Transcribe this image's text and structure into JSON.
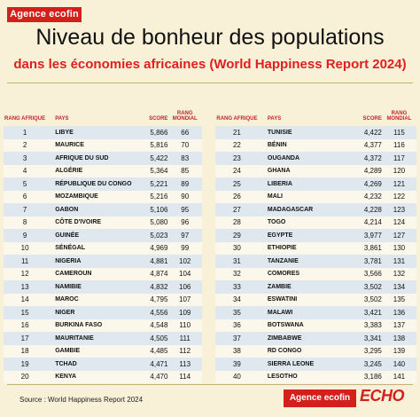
{
  "header": {
    "brand_logo": "Agence ecofin",
    "title": "Niveau de bonheur des populations",
    "subtitle": "dans les économies africaines (World Happiness Report 2024)"
  },
  "columns": {
    "rank_africa": "RANG AFRIQUE",
    "country": "PAYS",
    "score": "SCORE",
    "rank_world": "RANG MONDIAL"
  },
  "left_rows": [
    {
      "rank": "1",
      "country": "LIBYE",
      "score": "5,866",
      "world": "66"
    },
    {
      "rank": "2",
      "country": "MAURICE",
      "score": "5,816",
      "world": "70"
    },
    {
      "rank": "3",
      "country": "AFRIQUE DU SUD",
      "score": "5,422",
      "world": "83"
    },
    {
      "rank": "4",
      "country": "ALGÉRIE",
      "score": "5,364",
      "world": "85"
    },
    {
      "rank": "5",
      "country": "RÉPUBLIQUE DU CONGO",
      "score": "5,221",
      "world": "89"
    },
    {
      "rank": "6",
      "country": "MOZAMBIQUE",
      "score": "5,216",
      "world": "90"
    },
    {
      "rank": "7",
      "country": "GABON",
      "score": "5,106",
      "world": "95"
    },
    {
      "rank": "8",
      "country": "CÔTE D'IVOIRE",
      "score": "5,080",
      "world": "96"
    },
    {
      "rank": "9",
      "country": "GUINÉE",
      "score": "5,023",
      "world": "97"
    },
    {
      "rank": "10",
      "country": "SÉNÉGAL",
      "score": "4,969",
      "world": "99"
    },
    {
      "rank": "11",
      "country": "NIGERIA",
      "score": "4,881",
      "world": "102"
    },
    {
      "rank": "12",
      "country": "CAMEROUN",
      "score": "4,874",
      "world": "104"
    },
    {
      "rank": "13",
      "country": "NAMIBIE",
      "score": "4,832",
      "world": "106"
    },
    {
      "rank": "14",
      "country": "MAROC",
      "score": "4,795",
      "world": "107"
    },
    {
      "rank": "15",
      "country": "NIGER",
      "score": "4,556",
      "world": "109"
    },
    {
      "rank": "16",
      "country": "BURKINA FASO",
      "score": "4,548",
      "world": "110"
    },
    {
      "rank": "17",
      "country": "MAURITANIE",
      "score": "4,505",
      "world": "111"
    },
    {
      "rank": "18",
      "country": "GAMBIE",
      "score": "4,485",
      "world": "112"
    },
    {
      "rank": "19",
      "country": "TCHAD",
      "score": "4,471",
      "world": "113"
    },
    {
      "rank": "20",
      "country": "KENYA",
      "score": "4,470",
      "world": "114"
    }
  ],
  "right_rows": [
    {
      "rank": "21",
      "country": "TUNISIE",
      "score": "4,422",
      "world": "115"
    },
    {
      "rank": "22",
      "country": "BÉNIN",
      "score": "4,377",
      "world": "116"
    },
    {
      "rank": "23",
      "country": "OUGANDA",
      "score": "4,372",
      "world": "117"
    },
    {
      "rank": "24",
      "country": "GHANA",
      "score": "4,289",
      "world": "120"
    },
    {
      "rank": "25",
      "country": "LIBERIA",
      "score": "4,269",
      "world": "121"
    },
    {
      "rank": "26",
      "country": "MALI",
      "score": "4,232",
      "world": "122"
    },
    {
      "rank": "27",
      "country": "MADAGASCAR",
      "score": "4,228",
      "world": "123"
    },
    {
      "rank": "28",
      "country": "TOGO",
      "score": "4,214",
      "world": "124"
    },
    {
      "rank": "29",
      "country": "EGYPTE",
      "score": "3,977",
      "world": "127"
    },
    {
      "rank": "30",
      "country": "ETHIOPIE",
      "score": "3,861",
      "world": "130"
    },
    {
      "rank": "31",
      "country": "TANZANIE",
      "score": "3,781",
      "world": "131"
    },
    {
      "rank": "32",
      "country": "COMORES",
      "score": "3,566",
      "world": "132"
    },
    {
      "rank": "33",
      "country": "ZAMBIE",
      "score": "3,502",
      "world": "134"
    },
    {
      "rank": "34",
      "country": "ESWATINI",
      "score": "3,502",
      "world": "135"
    },
    {
      "rank": "35",
      "country": "MALAWI",
      "score": "3,421",
      "world": "136"
    },
    {
      "rank": "36",
      "country": "BOTSWANA",
      "score": "3,383",
      "world": "137"
    },
    {
      "rank": "37",
      "country": "ZIMBABWE",
      "score": "3,341",
      "world": "138"
    },
    {
      "rank": "38",
      "country": "RD CONGO",
      "score": "3,295",
      "world": "139"
    },
    {
      "rank": "39",
      "country": "SIERRA LEONE",
      "score": "3,245",
      "world": "140"
    },
    {
      "rank": "40",
      "country": "LESOTHO",
      "score": "3,186",
      "world": "141"
    }
  ],
  "footer": {
    "source": "Source : World Happiness Report 2024",
    "brand_logo": "Agence ecofin",
    "partner_logo": "ECHO"
  },
  "colors": {
    "background": "#f8f1d8",
    "accent_red": "#d3201d",
    "row_blue": "#dfe8ee"
  }
}
